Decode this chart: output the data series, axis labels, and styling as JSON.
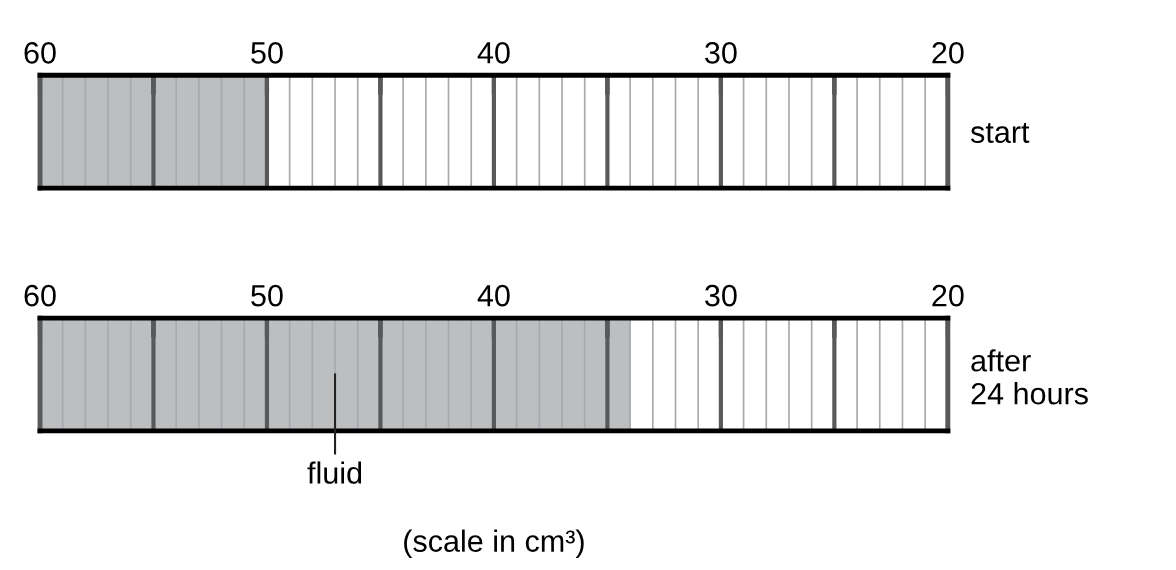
{
  "chart_data": [
    {
      "type": "bar",
      "orientation": "horizontal",
      "categories": [
        "start"
      ],
      "base": [
        60
      ],
      "values": [
        -10
      ],
      "color": "#bcbec0",
      "xlim": [
        60,
        20
      ],
      "xticks": [
        60,
        {
          "value": 55,
          "label": null
        },
        50,
        {
          "value": 45,
          "label": null
        },
        40,
        {
          "value": 35,
          "label": null
        },
        30,
        {
          "value": 25,
          "label": null
        },
        20
      ],
      "grid": "x"
    },
    {
      "type": "bar",
      "orientation": "horizontal",
      "categories": [
        "after\n24 hours"
      ],
      "base": [
        60
      ],
      "values": [
        -26
      ],
      "color": "#bcbec0",
      "xlim": [
        60,
        20
      ],
      "xticks": [
        60,
        {
          "value": 55,
          "label": null
        },
        50,
        {
          "value": 45,
          "label": null
        },
        40,
        {
          "value": 35,
          "label": null
        },
        30,
        {
          "value": 25,
          "label": null
        },
        20
      ],
      "grid": "x",
      "annotations": [
        "fluid",
        "(scale in cm³)"
      ]
    }
  ]
}
